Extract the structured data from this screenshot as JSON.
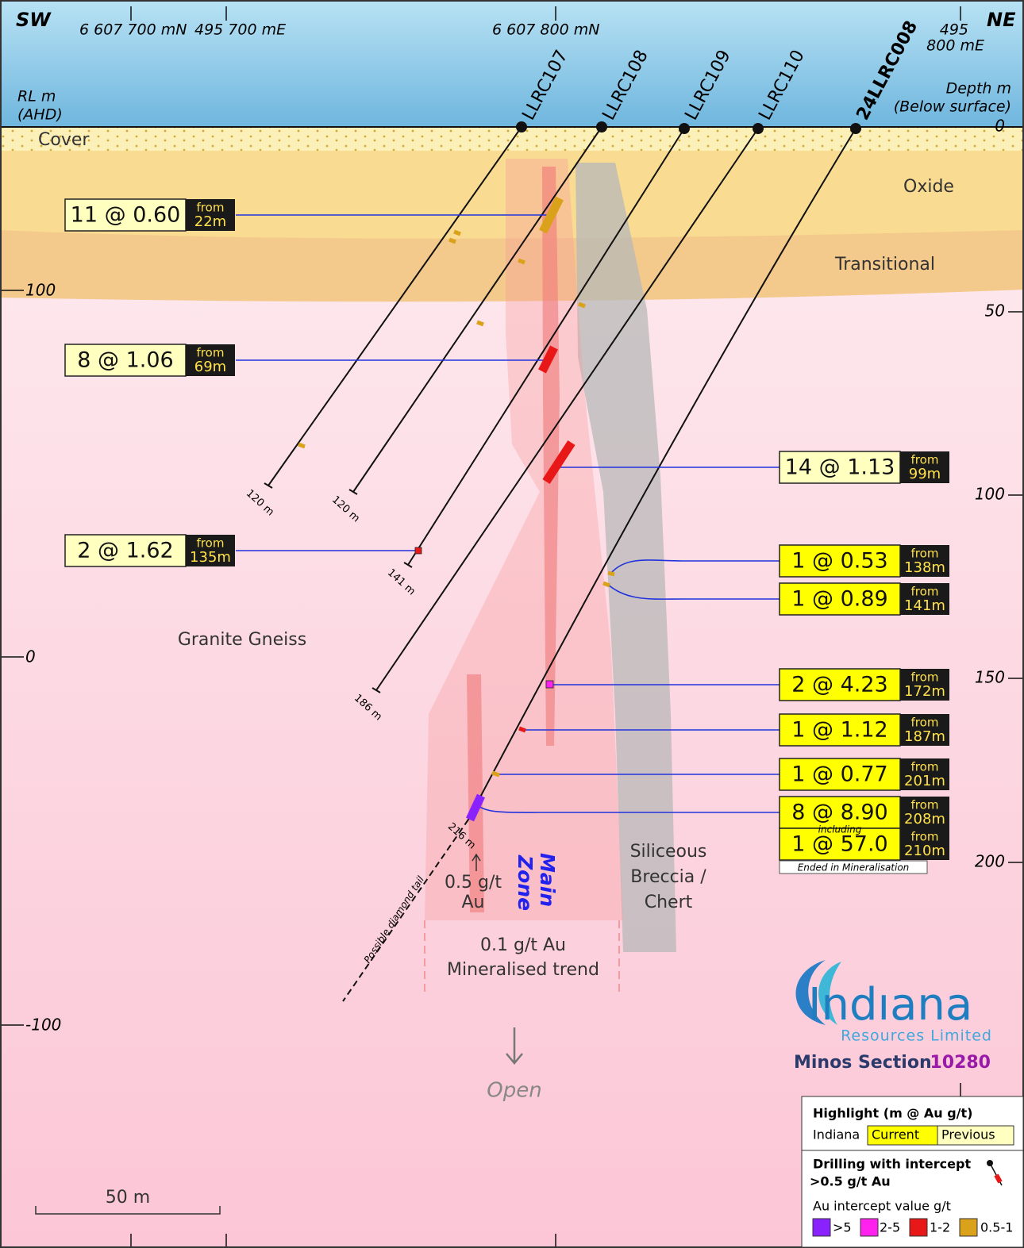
{
  "header": {
    "sw": "SW",
    "ne": "NE",
    "northing_1": "6 607 700 mN",
    "easting_1": "495 700 mE",
    "northing_2": "6 607 800 mN",
    "easting_2_line1": "495",
    "easting_2_line2": "800 mE",
    "rl_label_line1": "RL m",
    "rl_label_line2": "(AHD)",
    "depth_label_line1": "Depth m",
    "depth_label_line2": "(Below surface)"
  },
  "rl_ticks": [
    "100",
    "0",
    "-100"
  ],
  "depth_ticks": [
    "0",
    "50",
    "100",
    "150",
    "200"
  ],
  "layers": {
    "cover": "Cover",
    "oxide": "Oxide",
    "transitional": "Transitional",
    "granite": "Granite Gneiss"
  },
  "holes": [
    {
      "name": "LLRC107",
      "end": "120 m"
    },
    {
      "name": "LLRC108",
      "end": "120 m"
    },
    {
      "name": "LLRC109",
      "end": "141 m"
    },
    {
      "name": "LLRC110",
      "end": "186 m"
    },
    {
      "name": "24LLRC008",
      "end": "216 m"
    }
  ],
  "intercepts": [
    {
      "value": "11 @ 0.60",
      "from_label": "from",
      "from": "22m"
    },
    {
      "value": "8 @ 1.06",
      "from_label": "from",
      "from": "69m"
    },
    {
      "value": "14 @ 1.13",
      "from_label": "from",
      "from": "99m"
    },
    {
      "value": "2 @ 1.62",
      "from_label": "from",
      "from": "135m"
    },
    {
      "value": "1 @ 0.53",
      "from_label": "from",
      "from": "138m"
    },
    {
      "value": "1 @ 0.89",
      "from_label": "from",
      "from": "141m"
    },
    {
      "value": "2 @ 4.23",
      "from_label": "from",
      "from": "172m"
    },
    {
      "value": "1 @ 1.12",
      "from_label": "from",
      "from": "187m"
    },
    {
      "value": "1 @ 0.77",
      "from_label": "from",
      "from": "201m"
    },
    {
      "value": "8 @ 8.90",
      "from_label": "from",
      "from": "208m"
    },
    {
      "value": "1 @ 57.0",
      "from_label": "from",
      "from": "210m"
    }
  ],
  "including": "including",
  "ended_note": "Ended in Mineralisation",
  "zones": {
    "main_line1": "Main",
    "main_line2": "Zone",
    "siliceous_line1": "Siliceous",
    "siliceous_line2": "Breccia /",
    "siliceous_line3": "Chert",
    "high_grade_line1": "0.5 g/t",
    "high_grade_line2": "Au",
    "trend_line1": "0.1 g/t Au",
    "trend_line2": "Mineralised trend",
    "diamond_tail": "Possible diamond tail",
    "open": "Open"
  },
  "scale_bar": "50 m",
  "logo": {
    "name": "Indıana",
    "subtitle": "Resources Limited",
    "section_label": "Minos Section",
    "section_number": "10280"
  },
  "legend": {
    "title": "Highlight (m @ Au g/t)",
    "company": "Indiana",
    "current": "Current",
    "previous": "Previous",
    "drilling_line1": "Drilling with intercept",
    "drilling_line2": ">0.5 g/t Au",
    "value_title": "Au intercept value g/t",
    "classes": [
      ">5",
      "2-5",
      "1-2",
      "0.5-1"
    ]
  }
}
